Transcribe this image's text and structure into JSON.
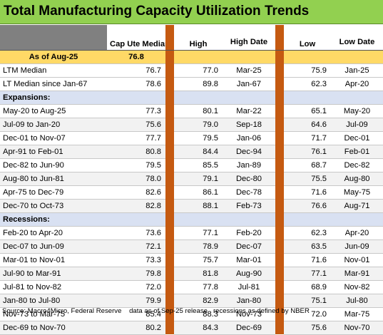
{
  "title": "Total Manufacturing Capacity Utilization Trends",
  "columns": {
    "cap_ute_median": "Cap Ute Median",
    "high": "High",
    "high_date": "High Date",
    "low": "Low",
    "low_date": "Low Date"
  },
  "as_of": {
    "label": "As of Aug-25",
    "value": "76.8"
  },
  "summary_rows": [
    {
      "label": "LTM Median",
      "median": "76.7",
      "high": "77.0",
      "high_date": "Mar-25",
      "low": "75.9",
      "low_date": "Jan-25"
    },
    {
      "label": "LT Median since Jan-67",
      "median": "78.6",
      "high": "89.8",
      "high_date": "Jan-67",
      "low": "62.3",
      "low_date": "Apr-20"
    }
  ],
  "expansions_label": "Expansions:",
  "expansions": [
    {
      "label": "May-20 to Aug-25",
      "median": "77.3",
      "high": "80.1",
      "high_date": "Mar-22",
      "low": "65.1",
      "low_date": "May-20"
    },
    {
      "label": "Jul-09 to Jan-20",
      "median": "75.6",
      "high": "79.0",
      "high_date": "Sep-18",
      "low": "64.6",
      "low_date": "Jul-09"
    },
    {
      "label": "Dec-01 to Nov-07",
      "median": "77.7",
      "high": "79.5",
      "high_date": "Jan-06",
      "low": "71.7",
      "low_date": "Dec-01"
    },
    {
      "label": "Apr-91 to Feb-01",
      "median": "80.8",
      "high": "84.4",
      "high_date": "Dec-94",
      "low": "76.1",
      "low_date": "Feb-01"
    },
    {
      "label": "Dec-82 to Jun-90",
      "median": "79.5",
      "high": "85.5",
      "high_date": "Jan-89",
      "low": "68.7",
      "low_date": "Dec-82"
    },
    {
      "label": "Aug-80 to Jun-81",
      "median": "78.0",
      "high": "79.1",
      "high_date": "Dec-80",
      "low": "75.5",
      "low_date": "Aug-80"
    },
    {
      "label": "Apr-75 to Dec-79",
      "median": "82.6",
      "high": "86.1",
      "high_date": "Dec-78",
      "low": "71.6",
      "low_date": "May-75"
    },
    {
      "label": "Dec-70 to Oct-73",
      "median": "82.8",
      "high": "88.1",
      "high_date": "Feb-73",
      "low": "76.6",
      "low_date": "Aug-71"
    }
  ],
  "recessions_label": "Recessions:",
  "recessions": [
    {
      "label": "Feb-20 to Apr-20",
      "median": "73.6",
      "high": "77.1",
      "high_date": "Feb-20",
      "low": "62.3",
      "low_date": "Apr-20"
    },
    {
      "label": "Dec-07 to Jun-09",
      "median": "72.1",
      "high": "78.9",
      "high_date": "Dec-07",
      "low": "63.5",
      "low_date": "Jun-09"
    },
    {
      "label": "Mar-01 to Nov-01",
      "median": "73.3",
      "high": "75.7",
      "high_date": "Mar-01",
      "low": "71.6",
      "low_date": "Nov-01"
    },
    {
      "label": "Jul-90 to Mar-91",
      "median": "79.8",
      "high": "81.8",
      "high_date": "Aug-90",
      "low": "77.1",
      "low_date": "Mar-91"
    },
    {
      "label": "Jul-81 to Nov-82",
      "median": "72.0",
      "high": "77.8",
      "high_date": "Jul-81",
      "low": "68.9",
      "low_date": "Nov-82"
    },
    {
      "label": "Jan-80 to Jul-80",
      "median": "79.9",
      "high": "82.9",
      "high_date": "Jan-80",
      "low": "75.1",
      "low_date": "Jul-80"
    },
    {
      "label": "Nov-73 to Mar-75",
      "median": "85.4",
      "high": "88.3",
      "high_date": "Nov-73",
      "low": "72.0",
      "low_date": "Mar-75"
    },
    {
      "label": "Dec-69 to Nov-70",
      "median": "80.2",
      "high": "84.3",
      "high_date": "Dec-69",
      "low": "75.6",
      "low_date": "Nov-70"
    }
  ],
  "footer": {
    "source": "Source: Macro4Micro, Federal Reserve",
    "data_note": "data as of Sep-25 release",
    "recession_note": "recessions as defined by NBER"
  },
  "colors": {
    "title_bg": "#92d050",
    "as_of_bg": "#ffd966",
    "section_bg": "#d9e1f2",
    "separator": "#c55a11",
    "header_gray": "#808080"
  }
}
